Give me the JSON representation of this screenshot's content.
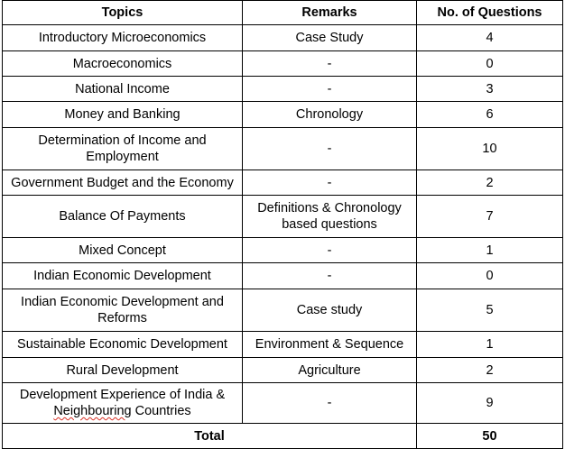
{
  "table": {
    "headers": [
      "Topics",
      "Remarks",
      "No. of Questions"
    ],
    "rows": [
      {
        "topic": "Introductory Microeconomics",
        "remarks": "Case Study",
        "count": "4"
      },
      {
        "topic": "Macroeconomics",
        "remarks": "-",
        "count": "0"
      },
      {
        "topic": "National Income",
        "remarks": "-",
        "count": "3"
      },
      {
        "topic": "Money and Banking",
        "remarks": "Chronology",
        "count": "6"
      },
      {
        "topic": "Determination of Income and Employment",
        "remarks": "-",
        "count": "10"
      },
      {
        "topic": "Government Budget and the Economy",
        "remarks": "-",
        "count": "2"
      },
      {
        "topic": "Balance Of Payments",
        "remarks": "Definitions & Chronology based questions",
        "count": "7"
      },
      {
        "topic": "Mixed Concept",
        "remarks": "-",
        "count": "1"
      },
      {
        "topic": "Indian Economic Development",
        "remarks": "-",
        "count": "0"
      },
      {
        "topic": "Indian Economic Development and Reforms",
        "remarks": "Case study",
        "count": "5"
      },
      {
        "topic": "Sustainable Economic Development",
        "remarks": "Environment & Sequence",
        "count": "1"
      },
      {
        "topic": "Rural Development",
        "remarks": "Agriculture",
        "count": "2"
      },
      {
        "topic_part1": "Development Experience of India &",
        "topic_part2": "Neighbouring",
        "topic_part3": " Countries",
        "remarks": "-",
        "count": "9"
      }
    ],
    "total": {
      "label": "Total",
      "count": "50"
    }
  }
}
